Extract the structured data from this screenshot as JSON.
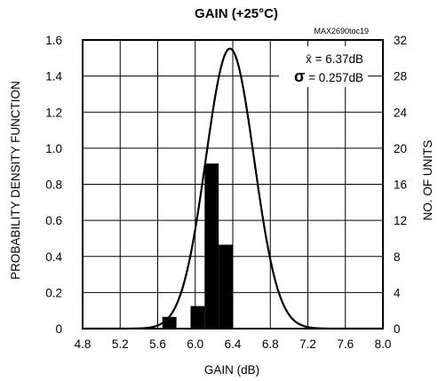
{
  "chart_data": {
    "type": "bar",
    "title": "GAIN (+25°C)",
    "code": "MAX2690toc19",
    "xlabel": "GAIN (dB)",
    "ylabel_left": "PROBABILITY DENSITY FUNCTION",
    "ylabel_right": "NO. OF UNITS",
    "xlim": [
      4.8,
      8.0
    ],
    "ylim_left": [
      0,
      1.6
    ],
    "ylim_right": [
      0,
      32
    ],
    "x_ticks": [
      "4.8",
      "5.2",
      "5.6",
      "6.0",
      "6.4",
      "6.8",
      "7.2",
      "7.6",
      "8.0"
    ],
    "y_left_ticks": [
      "0",
      "0.2",
      "0.4",
      "0.6",
      "0.8",
      "1.0",
      "1.2",
      "1.4",
      "1.6"
    ],
    "y_right_ticks": [
      "0",
      "4",
      "8",
      "12",
      "16",
      "20",
      "24",
      "28",
      "32"
    ],
    "grid": true,
    "histogram": {
      "axis": "right",
      "bins": [
        {
          "x0": 5.65,
          "x1": 5.8,
          "count": 1.3
        },
        {
          "x0": 5.95,
          "x1": 6.1,
          "count": 2.5
        },
        {
          "x0": 6.1,
          "x1": 6.25,
          "count": 18.3
        },
        {
          "x0": 6.25,
          "x1": 6.4,
          "count": 9.3
        }
      ]
    },
    "pdf_curve": {
      "axis": "left",
      "distribution": "normal",
      "mean": 6.37,
      "sigma": 0.257,
      "x_range": [
        4.8,
        8.0
      ]
    },
    "stats": {
      "mean_label": "x̄ = 6.37dB",
      "sigma_symbol": "σ",
      "sigma_text": " = 0.257dB"
    }
  }
}
